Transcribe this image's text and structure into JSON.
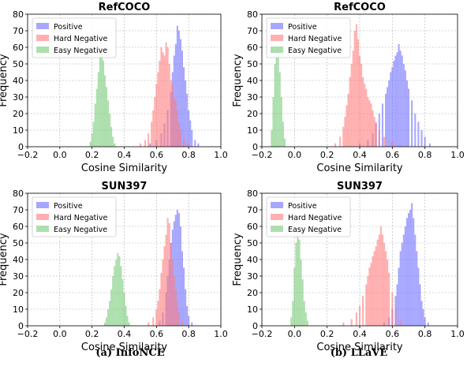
{
  "captions": [
    "(a) InfoNCE",
    "(b) LLaVE"
  ],
  "chart_data": [
    {
      "type": "bar",
      "title": "RefCOCO",
      "xlabel": "Cosine Similarity",
      "ylabel": "Frequency",
      "xlim": [
        -0.2,
        1.0
      ],
      "ylim": [
        0,
        80
      ],
      "xticks": [
        "−0.2",
        "0.0",
        "0.2",
        "0.4",
        "0.6",
        "0.8",
        "1.0"
      ],
      "yticks": [
        "0",
        "10",
        "20",
        "30",
        "40",
        "50",
        "60",
        "70",
        "80"
      ],
      "grid": true,
      "legend": "top-left",
      "bin_width": 0.01,
      "series": [
        {
          "name": "Positive",
          "color": "#6c6cff",
          "x": [
            0.56,
            0.6,
            0.63,
            0.65,
            0.67,
            0.69,
            0.7,
            0.71,
            0.72,
            0.73,
            0.74,
            0.75,
            0.76,
            0.77,
            0.78,
            0.79,
            0.8,
            0.81,
            0.82,
            0.84,
            0.86
          ],
          "values": [
            2,
            4,
            8,
            14,
            22,
            33,
            45,
            55,
            62,
            73,
            70,
            65,
            58,
            48,
            40,
            32,
            22,
            16,
            10,
            4,
            2
          ]
        },
        {
          "name": "Hard Negative",
          "color": "#ff7a7a",
          "x": [
            0.5,
            0.53,
            0.55,
            0.57,
            0.58,
            0.59,
            0.6,
            0.61,
            0.62,
            0.63,
            0.64,
            0.65,
            0.66,
            0.67,
            0.68,
            0.69,
            0.7,
            0.71,
            0.72,
            0.73,
            0.74,
            0.75,
            0.77,
            0.79
          ],
          "values": [
            2,
            4,
            8,
            15,
            22,
            30,
            38,
            45,
            52,
            60,
            57,
            55,
            63,
            60,
            50,
            40,
            38,
            30,
            28,
            22,
            15,
            10,
            5,
            2
          ]
        },
        {
          "name": "Easy Negative",
          "color": "#77c977",
          "x": [
            0.19,
            0.2,
            0.21,
            0.22,
            0.23,
            0.24,
            0.25,
            0.26,
            0.27,
            0.28,
            0.29,
            0.3,
            0.31,
            0.32,
            0.33,
            0.34
          ],
          "values": [
            3,
            8,
            15,
            26,
            35,
            45,
            55,
            58,
            52,
            43,
            36,
            28,
            20,
            12,
            6,
            2
          ]
        }
      ]
    },
    {
      "type": "bar",
      "title": "RefCOCO",
      "xlabel": "Cosine Similarity",
      "ylabel": "Frequency",
      "xlim": [
        -0.2,
        1.0
      ],
      "ylim": [
        0,
        80
      ],
      "xticks": [
        "−0.2",
        "0.0",
        "0.2",
        "0.4",
        "0.6",
        "0.8",
        "1.0"
      ],
      "yticks": [
        "0",
        "10",
        "20",
        "30",
        "40",
        "50",
        "60",
        "70",
        "80"
      ],
      "grid": true,
      "legend": "top-left",
      "bin_width": 0.01,
      "series": [
        {
          "name": "Positive",
          "color": "#6c6cff",
          "x": [
            0.4,
            0.45,
            0.48,
            0.5,
            0.52,
            0.54,
            0.56,
            0.57,
            0.58,
            0.59,
            0.6,
            0.61,
            0.62,
            0.63,
            0.64,
            0.65,
            0.66,
            0.67,
            0.68,
            0.69,
            0.7,
            0.72,
            0.74,
            0.76,
            0.78,
            0.8,
            0.83
          ],
          "values": [
            2,
            4,
            8,
            14,
            20,
            26,
            32,
            36,
            40,
            45,
            48,
            52,
            55,
            57,
            62,
            58,
            55,
            50,
            46,
            40,
            35,
            28,
            20,
            15,
            10,
            6,
            2
          ]
        },
        {
          "name": "Hard Negative",
          "color": "#ff7a7a",
          "x": [
            0.25,
            0.28,
            0.3,
            0.31,
            0.32,
            0.33,
            0.34,
            0.35,
            0.36,
            0.37,
            0.38,
            0.39,
            0.4,
            0.41,
            0.42,
            0.43,
            0.44,
            0.45,
            0.46,
            0.47,
            0.48,
            0.49,
            0.5,
            0.52,
            0.55,
            0.6,
            0.65
          ],
          "values": [
            2,
            6,
            12,
            18,
            25,
            32,
            42,
            50,
            58,
            70,
            74,
            65,
            55,
            50,
            42,
            38,
            35,
            30,
            28,
            26,
            22,
            18,
            15,
            10,
            6,
            3,
            1
          ]
        },
        {
          "name": "Easy Negative",
          "color": "#77c977",
          "x": [
            -0.14,
            -0.13,
            -0.12,
            -0.11,
            -0.1,
            -0.09,
            -0.08,
            -0.07,
            -0.06
          ],
          "values": [
            10,
            30,
            50,
            58,
            55,
            45,
            30,
            15,
            5
          ]
        }
      ]
    },
    {
      "type": "bar",
      "title": "SUN397",
      "xlabel": "Cosine Similarity",
      "ylabel": "Frequency",
      "xlim": [
        -0.2,
        1.0
      ],
      "ylim": [
        0,
        80
      ],
      "xticks": [
        "−0.2",
        "0.0",
        "0.2",
        "0.4",
        "0.6",
        "0.8",
        "1.0"
      ],
      "yticks": [
        "0",
        "10",
        "20",
        "30",
        "40",
        "50",
        "60",
        "70",
        "80"
      ],
      "grid": true,
      "legend": "top-left",
      "bin_width": 0.01,
      "series": [
        {
          "name": "Positive",
          "color": "#6c6cff",
          "x": [
            0.62,
            0.64,
            0.66,
            0.67,
            0.68,
            0.69,
            0.7,
            0.71,
            0.72,
            0.73,
            0.74,
            0.75,
            0.76,
            0.77,
            0.78,
            0.79,
            0.8,
            0.82
          ],
          "values": [
            3,
            8,
            20,
            30,
            40,
            50,
            58,
            63,
            67,
            70,
            68,
            60,
            45,
            35,
            22,
            12,
            6,
            2
          ]
        },
        {
          "name": "Hard Negative",
          "color": "#ff7a7a",
          "x": [
            0.55,
            0.58,
            0.6,
            0.61,
            0.62,
            0.63,
            0.64,
            0.65,
            0.66,
            0.67,
            0.68,
            0.69,
            0.7,
            0.71,
            0.72,
            0.73,
            0.74,
            0.76
          ],
          "values": [
            2,
            5,
            10,
            15,
            22,
            32,
            40,
            48,
            55,
            65,
            62,
            50,
            40,
            30,
            22,
            15,
            8,
            3
          ]
        },
        {
          "name": "Easy Negative",
          "color": "#77c977",
          "x": [
            0.28,
            0.29,
            0.3,
            0.31,
            0.32,
            0.33,
            0.34,
            0.35,
            0.36,
            0.37,
            0.38,
            0.39,
            0.4,
            0.41,
            0.42,
            0.43
          ],
          "values": [
            2,
            5,
            10,
            15,
            22,
            30,
            36,
            40,
            44,
            42,
            36,
            28,
            20,
            12,
            6,
            2
          ]
        }
      ]
    },
    {
      "type": "bar",
      "title": "SUN397",
      "xlabel": "Cosine Similarity",
      "ylabel": "Frequency",
      "xlim": [
        -0.2,
        1.0
      ],
      "ylim": [
        0,
        80
      ],
      "xticks": [
        "−0.2",
        "0.0",
        "0.2",
        "0.4",
        "0.6",
        "0.8",
        "1.0"
      ],
      "yticks": [
        "0",
        "10",
        "20",
        "30",
        "40",
        "50",
        "60",
        "70",
        "80"
      ],
      "grid": true,
      "legend": "top-left",
      "bin_width": 0.01,
      "series": [
        {
          "name": "Positive",
          "color": "#6c6cff",
          "x": [
            0.55,
            0.58,
            0.6,
            0.62,
            0.63,
            0.64,
            0.65,
            0.66,
            0.67,
            0.68,
            0.69,
            0.7,
            0.71,
            0.72,
            0.73,
            0.74,
            0.75,
            0.76,
            0.77,
            0.78,
            0.79,
            0.8,
            0.82
          ],
          "values": [
            2,
            5,
            10,
            18,
            25,
            35,
            45,
            50,
            55,
            60,
            65,
            68,
            70,
            74,
            65,
            55,
            45,
            35,
            25,
            15,
            10,
            5,
            2
          ]
        },
        {
          "name": "Hard Negative",
          "color": "#ff7a7a",
          "x": [
            0.3,
            0.35,
            0.38,
            0.4,
            0.42,
            0.44,
            0.45,
            0.46,
            0.47,
            0.48,
            0.49,
            0.5,
            0.51,
            0.52,
            0.53,
            0.54,
            0.55,
            0.56,
            0.57,
            0.58,
            0.6,
            0.62,
            0.65
          ],
          "values": [
            2,
            4,
            8,
            12,
            18,
            25,
            30,
            35,
            38,
            42,
            45,
            48,
            52,
            55,
            60,
            55,
            50,
            45,
            40,
            32,
            20,
            10,
            3
          ]
        },
        {
          "name": "Easy Negative",
          "color": "#77c977",
          "x": [
            -0.02,
            -0.01,
            0.0,
            0.01,
            0.02,
            0.03,
            0.04,
            0.05,
            0.06,
            0.07,
            0.08
          ],
          "values": [
            5,
            15,
            35,
            50,
            60,
            52,
            40,
            28,
            15,
            8,
            3
          ]
        }
      ]
    }
  ]
}
